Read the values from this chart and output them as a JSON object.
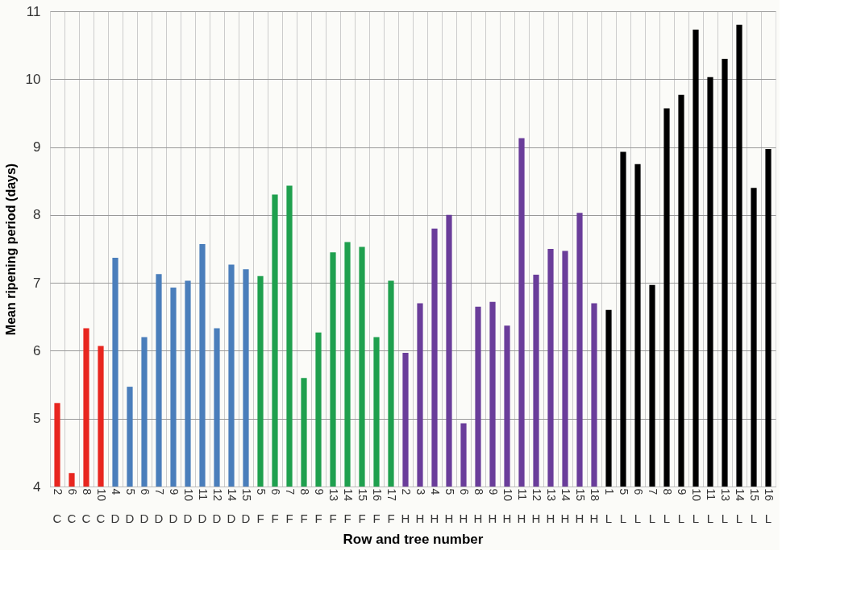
{
  "chart_data": {
    "type": "bar",
    "xlabel": "Row and tree number",
    "ylabel": "Mean ripening period (days)",
    "categories": [
      "2 C",
      "6 C",
      "8 C",
      "10 C",
      "4 D",
      "5 D",
      "6 D",
      "7 D",
      "9 D",
      "10 D",
      "11 D",
      "12 D",
      "14 D",
      "15 D",
      "5 F",
      "6 F",
      "7 F",
      "8 F",
      "9 F",
      "13 F",
      "14 F",
      "15 F",
      "16 F",
      "17 F",
      "2 H",
      "3 H",
      "4 H",
      "5 H",
      "6 H",
      "8 H",
      "9 H",
      "10 H",
      "11 H",
      "12 H",
      "13 H",
      "14 H",
      "15 H",
      "18 H",
      "1 L",
      "5 L",
      "6 L",
      "7 L",
      "8 L",
      "9 L",
      "10 L",
      "11 L",
      "13 L",
      "14 L",
      "15 L",
      "16 L"
    ],
    "values": [
      5.23,
      4.2,
      6.33,
      6.07,
      7.37,
      5.47,
      6.2,
      7.13,
      6.93,
      7.03,
      7.57,
      6.33,
      7.27,
      7.2,
      7.1,
      8.3,
      8.43,
      5.6,
      6.27,
      7.45,
      7.6,
      7.53,
      6.2,
      7.03,
      5.97,
      6.7,
      7.8,
      8.0,
      4.93,
      6.65,
      6.72,
      6.37,
      9.13,
      7.12,
      7.5,
      7.47,
      8.03,
      6.7,
      6.6,
      8.93,
      8.75,
      6.97,
      9.57,
      9.77,
      10.73,
      10.03,
      10.3,
      10.8,
      8.4,
      8.97
    ],
    "colors": [
      "#e8261f",
      "#e8261f",
      "#e8261f",
      "#e8261f",
      "#4a7ebb",
      "#4a7ebb",
      "#4a7ebb",
      "#4a7ebb",
      "#4a7ebb",
      "#4a7ebb",
      "#4a7ebb",
      "#4a7ebb",
      "#4a7ebb",
      "#4a7ebb",
      "#1fa04e",
      "#1fa04e",
      "#1fa04e",
      "#1fa04e",
      "#1fa04e",
      "#1fa04e",
      "#1fa04e",
      "#1fa04e",
      "#1fa04e",
      "#1fa04e",
      "#6a3d9a",
      "#6a3d9a",
      "#6a3d9a",
      "#6a3d9a",
      "#6a3d9a",
      "#6a3d9a",
      "#6a3d9a",
      "#6a3d9a",
      "#6a3d9a",
      "#6a3d9a",
      "#6a3d9a",
      "#6a3d9a",
      "#6a3d9a",
      "#6a3d9a",
      "#000000",
      "#000000",
      "#000000",
      "#000000",
      "#000000",
      "#000000",
      "#000000",
      "#000000",
      "#000000",
      "#000000",
      "#000000",
      "#000000"
    ],
    "ylim": [
      4,
      11
    ],
    "yticks": [
      4,
      5,
      6,
      7,
      8,
      9,
      10,
      11
    ],
    "grid": true,
    "legend": false
  }
}
